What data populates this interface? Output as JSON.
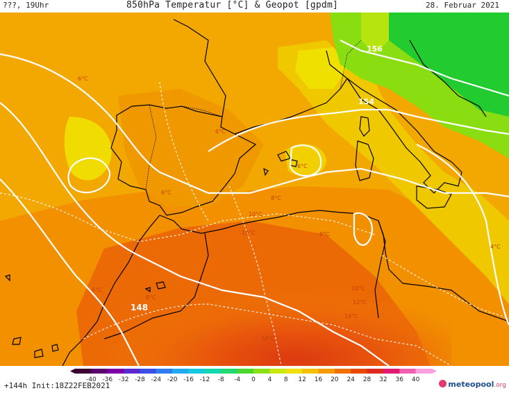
{
  "header": {
    "left": "???, 19Uhr",
    "title": "850hPa Temperatur [°C] & Geopot [gpdm]",
    "date": "28. Februar 2021"
  },
  "map": {
    "geopot_labels": [
      "156",
      "154",
      "148"
    ],
    "temp_labels": [
      "6°C",
      "6°C",
      "6°C",
      "8°C",
      "6°C",
      "6°C",
      "8°C",
      "10°C",
      "10°C",
      "12°C",
      "10°C",
      "14°C",
      "18°C",
      "8°C",
      "4°C"
    ]
  },
  "legend": {
    "values": [
      "-40",
      "-36",
      "-32",
      "-28",
      "-24",
      "-20",
      "-16",
      "-12",
      "-8",
      "-4",
      "0",
      "4",
      "8",
      "12",
      "16",
      "20",
      "24",
      "28",
      "32",
      "36",
      "40"
    ],
    "colors": [
      "#3a0030",
      "#5a0070",
      "#7a00a8",
      "#5a2ad0",
      "#3a4ee8",
      "#2f7cf0",
      "#22aaf0",
      "#16c8e0",
      "#12d8b0",
      "#22d870",
      "#4ad830",
      "#8ae018",
      "#c8e810",
      "#f0e010",
      "#f5c000",
      "#f59a00",
      "#f07000",
      "#e84800",
      "#e02a20",
      "#e01a70",
      "#f060b0",
      "#f8a0e0"
    ]
  },
  "footer": {
    "init": "+144h Init:18Z22FEB2021",
    "brand_main": "meteopool",
    "brand_tld": ".org"
  }
}
